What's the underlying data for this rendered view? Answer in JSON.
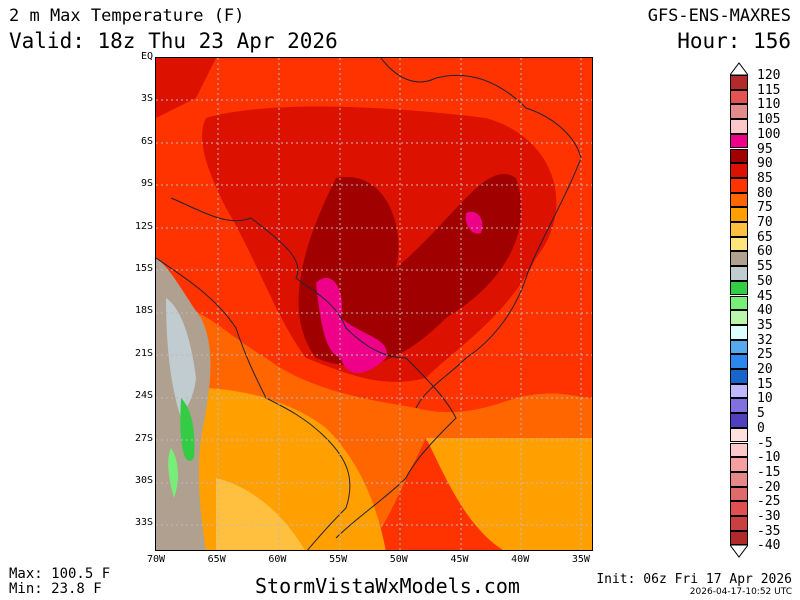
{
  "header": {
    "title": "2 m Max Temperature (F)",
    "valid": "Valid: 18z Thu 23 Apr 2026",
    "model": "GFS-ENS-MAXRES",
    "hour": "Hour: 156"
  },
  "footer": {
    "max": "Max: 100.5 F",
    "min": "Min: 23.8 F",
    "site": "StormVistaWxModels.com",
    "init": "Init: 06z Fri 17 Apr 2026",
    "stamp": "2026-04-17-10:52 UTC"
  },
  "lat_labels": [
    "EQ",
    "3S",
    "6S",
    "9S",
    "12S",
    "15S",
    "18S",
    "21S",
    "24S",
    "27S",
    "30S",
    "33S"
  ],
  "lon_labels": [
    "70W",
    "65W",
    "60W",
    "55W",
    "50W",
    "45W",
    "40W",
    "35W"
  ],
  "legend": {
    "labels": [
      "120",
      "115",
      "110",
      "105",
      "100",
      "95",
      "90",
      "85",
      "80",
      "75",
      "70",
      "65",
      "60",
      "55",
      "50",
      "45",
      "40",
      "35",
      "32",
      "25",
      "20",
      "15",
      "10",
      "5",
      "0",
      "-5",
      "-10",
      "-15",
      "-20",
      "-25",
      "-30",
      "-35",
      "-40"
    ],
    "colors": [
      "#b22a2a",
      "#e45252",
      "#e48c8c",
      "#ffc8c8",
      "#ee0088",
      "#a00000",
      "#dd1100",
      "#ff3300",
      "#ff6600",
      "#ffa000",
      "#ffc040",
      "#ffe57a",
      "#b0a090",
      "#c0ccd0",
      "#33cc44",
      "#77ee77",
      "#bbf7aa",
      "#ddffff",
      "#55aaee",
      "#2a88ee",
      "#1666cc",
      "#c0b8ff",
      "#8070e0",
      "#5040c0",
      "#ffe0e0",
      "#ffc8c8",
      "#f4a0a0",
      "#e48888",
      "#e06a6a",
      "#e05050",
      "#c84040",
      "#b02a2a"
    ]
  }
}
